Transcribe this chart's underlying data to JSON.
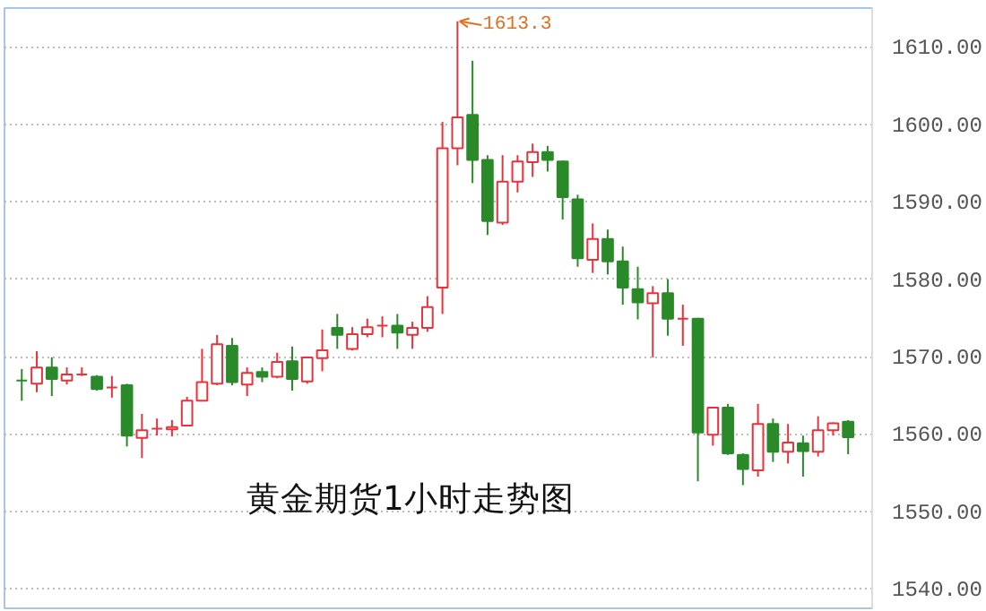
{
  "chart_data": {
    "type": "candlestick",
    "title": "黄金期货1小时走势图",
    "categories": [
      null,
      null,
      null,
      null,
      null,
      null,
      null,
      null,
      null,
      null,
      null,
      null,
      null,
      null,
      null,
      null,
      null,
      null,
      null,
      null,
      null,
      null,
      null,
      null,
      null,
      null,
      null,
      null,
      null,
      null,
      null,
      null,
      null,
      null,
      null,
      null,
      null,
      null,
      null,
      null,
      null,
      null,
      null,
      null,
      null,
      null,
      null,
      null,
      null,
      null,
      null,
      null,
      null,
      null,
      null,
      null
    ],
    "ohlc": [
      [
        1566.9,
        1568.4,
        1564.3,
        1566.9
      ],
      [
        1566.5,
        1570.7,
        1565.4,
        1568.6
      ],
      [
        1568.6,
        1569.9,
        1564.9,
        1567.1
      ],
      [
        1566.9,
        1568.6,
        1566.4,
        1567.7
      ],
      [
        1567.7,
        1568.6,
        1567.5,
        1567.7
      ],
      [
        1567.4,
        1567.6,
        1565.6,
        1565.8
      ],
      [
        1566.0,
        1567.5,
        1564.7,
        1566.0
      ],
      [
        1566.3,
        1566.5,
        1558.4,
        1559.8
      ],
      [
        1559.5,
        1562.6,
        1556.9,
        1560.5
      ],
      [
        1560.7,
        1562.0,
        1559.8,
        1560.7
      ],
      [
        1560.6,
        1561.8,
        1559.7,
        1560.9
      ],
      [
        1561.1,
        1564.8,
        1561.0,
        1564.3
      ],
      [
        1564.3,
        1571.0,
        1564.3,
        1566.7
      ],
      [
        1566.5,
        1572.8,
        1566.3,
        1571.6
      ],
      [
        1571.4,
        1572.4,
        1566.3,
        1566.7
      ],
      [
        1566.4,
        1568.6,
        1564.9,
        1567.9
      ],
      [
        1568.0,
        1568.6,
        1566.7,
        1567.4
      ],
      [
        1567.4,
        1570.5,
        1567.2,
        1569.3
      ],
      [
        1569.4,
        1571.3,
        1565.6,
        1567.1
      ],
      [
        1566.8,
        1570.0,
        1566.5,
        1569.9
      ],
      [
        1569.8,
        1573.5,
        1568.1,
        1570.8
      ],
      [
        1573.7,
        1575.5,
        1571.0,
        1572.8
      ],
      [
        1571.0,
        1573.8,
        1570.8,
        1572.9
      ],
      [
        1572.9,
        1574.9,
        1572.5,
        1573.8
      ],
      [
        1574.0,
        1575.2,
        1572.5,
        1574.0
      ],
      [
        1574.0,
        1575.5,
        1571.0,
        1573.1
      ],
      [
        1572.8,
        1574.5,
        1571.0,
        1573.7
      ],
      [
        1573.7,
        1577.8,
        1573.2,
        1576.4
      ],
      [
        1578.9,
        1600.3,
        1575.5,
        1596.9
      ],
      [
        1596.9,
        1613.3,
        1594.7,
        1600.9
      ],
      [
        1601.2,
        1608.2,
        1592.4,
        1595.4
      ],
      [
        1595.4,
        1596.0,
        1585.7,
        1587.5
      ],
      [
        1587.3,
        1596.0,
        1587.0,
        1592.6
      ],
      [
        1592.6,
        1596.0,
        1591.2,
        1595.2
      ],
      [
        1595.1,
        1597.5,
        1593.2,
        1596.4
      ],
      [
        1596.4,
        1597.2,
        1593.9,
        1595.4
      ],
      [
        1595.2,
        1595.3,
        1587.7,
        1590.6
      ],
      [
        1590.3,
        1590.9,
        1581.6,
        1582.7
      ],
      [
        1582.5,
        1587.2,
        1580.8,
        1585.2
      ],
      [
        1585.2,
        1586.4,
        1580.6,
        1582.3
      ],
      [
        1582.3,
        1584.2,
        1576.7,
        1578.9
      ],
      [
        1578.7,
        1581.6,
        1574.8,
        1577.0
      ],
      [
        1576.9,
        1579.1,
        1569.9,
        1578.2
      ],
      [
        1578.2,
        1580.0,
        1572.7,
        1574.9
      ],
      [
        1574.9,
        1576.7,
        1571.4,
        1574.9
      ],
      [
        1574.9,
        1575.0,
        1553.9,
        1560.2
      ],
      [
        1559.9,
        1563.5,
        1558.5,
        1563.4
      ],
      [
        1563.4,
        1563.9,
        1557.3,
        1557.5
      ],
      [
        1557.3,
        1557.5,
        1553.4,
        1555.5
      ],
      [
        1555.3,
        1563.9,
        1554.5,
        1561.3
      ],
      [
        1561.3,
        1562.0,
        1556.4,
        1557.7
      ],
      [
        1557.7,
        1561.3,
        1556.2,
        1558.9
      ],
      [
        1558.8,
        1559.8,
        1554.5,
        1557.8
      ],
      [
        1557.7,
        1562.3,
        1557.1,
        1560.5
      ],
      [
        1560.5,
        1561.5,
        1559.8,
        1561.4
      ],
      [
        1561.6,
        1561.8,
        1557.4,
        1559.6
      ]
    ],
    "colors": [
      "#2a8a2a",
      "#e8323c",
      "#2a8a2a",
      "#e8323c",
      "#e8323c",
      "#2a8a2a",
      "#e8323c",
      "#2a8a2a",
      "#e8323c",
      "#e8323c",
      "#e8323c",
      "#e8323c",
      "#e8323c",
      "#e8323c",
      "#2a8a2a",
      "#e8323c",
      "#2a8a2a",
      "#e8323c",
      "#2a8a2a",
      "#e8323c",
      "#e8323c",
      "#2a8a2a",
      "#e8323c",
      "#e8323c",
      "#e8323c",
      "#2a8a2a",
      "#e8323c",
      "#e8323c",
      "#e8323c",
      "#e8323c",
      "#2a8a2a",
      "#2a8a2a",
      "#e8323c",
      "#e8323c",
      "#e8323c",
      "#2a8a2a",
      "#2a8a2a",
      "#2a8a2a",
      "#e8323c",
      "#2a8a2a",
      "#2a8a2a",
      "#2a8a2a",
      "#e8323c",
      "#2a8a2a",
      "#e8323c",
      "#2a8a2a",
      "#e8323c",
      "#2a8a2a",
      "#2a8a2a",
      "#e8323c",
      "#2a8a2a",
      "#e8323c",
      "#2a8a2a",
      "#e8323c",
      "#e8323c",
      "#2a8a2a"
    ],
    "annotations": [
      "1613.3"
    ],
    "ylim": [
      1537.5,
      1615
    ],
    "yticks": [
      {
        "value": 1540,
        "label": "1540.00"
      },
      {
        "value": 1550,
        "label": "1550.00"
      },
      {
        "value": 1560,
        "label": "1560.00"
      },
      {
        "value": 1570,
        "label": "1570.00"
      },
      {
        "value": 1580,
        "label": "1580.00"
      },
      {
        "value": 1590,
        "label": "1590.00"
      },
      {
        "value": 1600,
        "label": "1600.00"
      },
      {
        "value": 1610,
        "label": "1610.00"
      }
    ],
    "grid": "y"
  }
}
